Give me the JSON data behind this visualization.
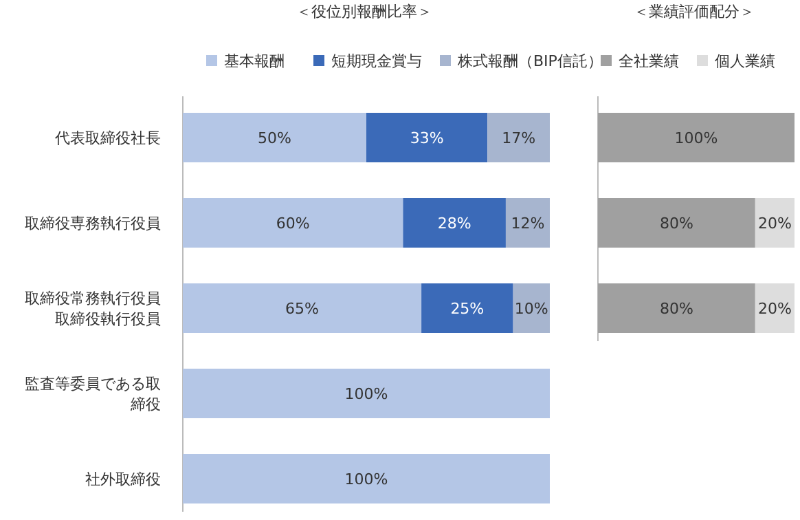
{
  "chart_data": [
    {
      "type": "bar",
      "orientation": "horizontal",
      "stacked": true,
      "title": "＜役位別報酬比率＞",
      "categories": [
        "代表取締役社長",
        "取締役専務執行役員",
        "取締役常務執行役員取締役執行役員",
        "監査等委員である取締役",
        "社外取締役"
      ],
      "xlim": [
        0,
        100
      ],
      "legend": "top",
      "tick_labels": "y",
      "series": [
        {
          "name": "基本報酬",
          "color": "#b4c6e6",
          "values": [
            50,
            60,
            65,
            100,
            100
          ],
          "value_labels": [
            "50%",
            "60%",
            "65%",
            "100%",
            "100%"
          ]
        },
        {
          "name": "短期現金賞与",
          "color": "#3b6ab8",
          "values": [
            33,
            28,
            25,
            null,
            null
          ],
          "value_labels": [
            "33%",
            "28%",
            "25%",
            null,
            null
          ]
        },
        {
          "name": "株式報酬（BIP信託）",
          "color": "#a7b5cf",
          "values": [
            17,
            12,
            10,
            null,
            null
          ],
          "value_labels": [
            "17%",
            "12%",
            "10%",
            null,
            null
          ]
        }
      ]
    },
    {
      "type": "bar",
      "orientation": "horizontal",
      "stacked": true,
      "title": "＜業績評価配分＞",
      "categories": [
        null,
        null,
        null
      ],
      "xlim": [
        0,
        100
      ],
      "legend": "top",
      "tick_labels": false,
      "series": [
        {
          "name": "全社業績",
          "color": "#a0a0a0",
          "values": [
            100,
            80,
            80
          ],
          "value_labels": [
            "100%",
            "80%",
            "80%"
          ]
        },
        {
          "name": "個人業績",
          "color": "#dddddd",
          "values": [
            null,
            20,
            20
          ],
          "value_labels": [
            null,
            "20%",
            "20%"
          ]
        }
      ]
    }
  ]
}
